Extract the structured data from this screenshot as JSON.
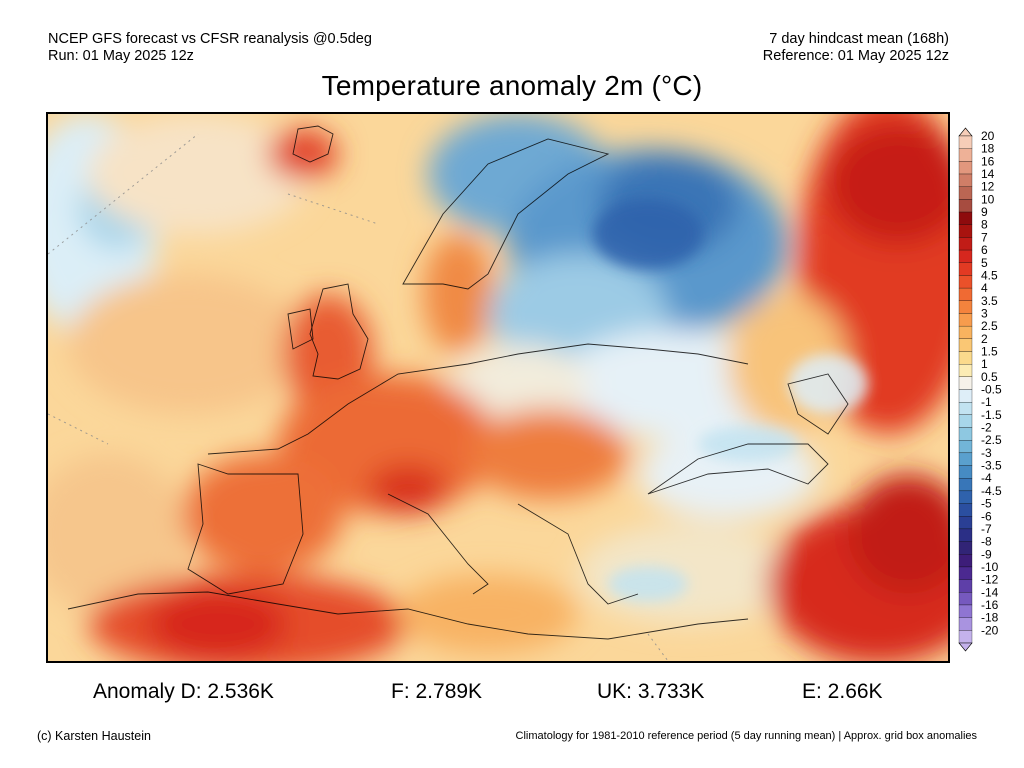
{
  "header": {
    "left_line1": "NCEP GFS forecast vs CFSR reanalysis @0.5deg",
    "left_line2": "Run: 01 May 2025 12z",
    "right_line1": "7 day hindcast mean (168h)",
    "right_line2": "Reference: 01 May 2025 12z"
  },
  "title": "Temperature anomaly 2m (°C)",
  "colorbar": {
    "labels": [
      "20",
      "18",
      "16",
      "14",
      "12",
      "10",
      "9",
      "8",
      "7",
      "6",
      "5",
      "4.5",
      "4",
      "3.5",
      "3",
      "2.5",
      "2",
      "1.5",
      "1",
      "0.5",
      "-0.5",
      "-1",
      "-1.5",
      "-2",
      "-2.5",
      "-3",
      "-3.5",
      "-4",
      "-4.5",
      "-5",
      "-6",
      "-7",
      "-8",
      "-9",
      "-10",
      "-12",
      "-14",
      "-16",
      "-18",
      "-20"
    ],
    "colors": [
      "#f6cdb8",
      "#eeb197",
      "#e2977d",
      "#d07e67",
      "#bb6653",
      "#a74c40",
      "#8e0b0d",
      "#a8130f",
      "#c11c17",
      "#d6271e",
      "#e23a23",
      "#ea512a",
      "#f06a33",
      "#f4833d",
      "#f79c4d",
      "#f9b35f",
      "#fac774",
      "#fbda8c",
      "#fcecb4",
      "#f6f2ea",
      "#deeef8",
      "#c2e3f1",
      "#a8d7ea",
      "#8ec8e1",
      "#72b5d8",
      "#5aa0ce",
      "#468bc3",
      "#3876b8",
      "#2f62ac",
      "#2b4fa0",
      "#2a3f94",
      "#2b2f86",
      "#312476",
      "#3d1d79",
      "#4b2990",
      "#5e3fa8",
      "#7659be",
      "#8f75d2",
      "#a993e0",
      "#c4b2ec"
    ]
  },
  "stats": {
    "d": "Anomaly D: 2.536K",
    "f": "F: 2.789K",
    "uk": "UK: 3.733K",
    "e": "E: 2.66K"
  },
  "footer": {
    "credit": "(c) Karsten Haustein",
    "note": "Climatology for 1981-2010 reference period (5 day running mean) | Approx. grid box anomalies"
  }
}
